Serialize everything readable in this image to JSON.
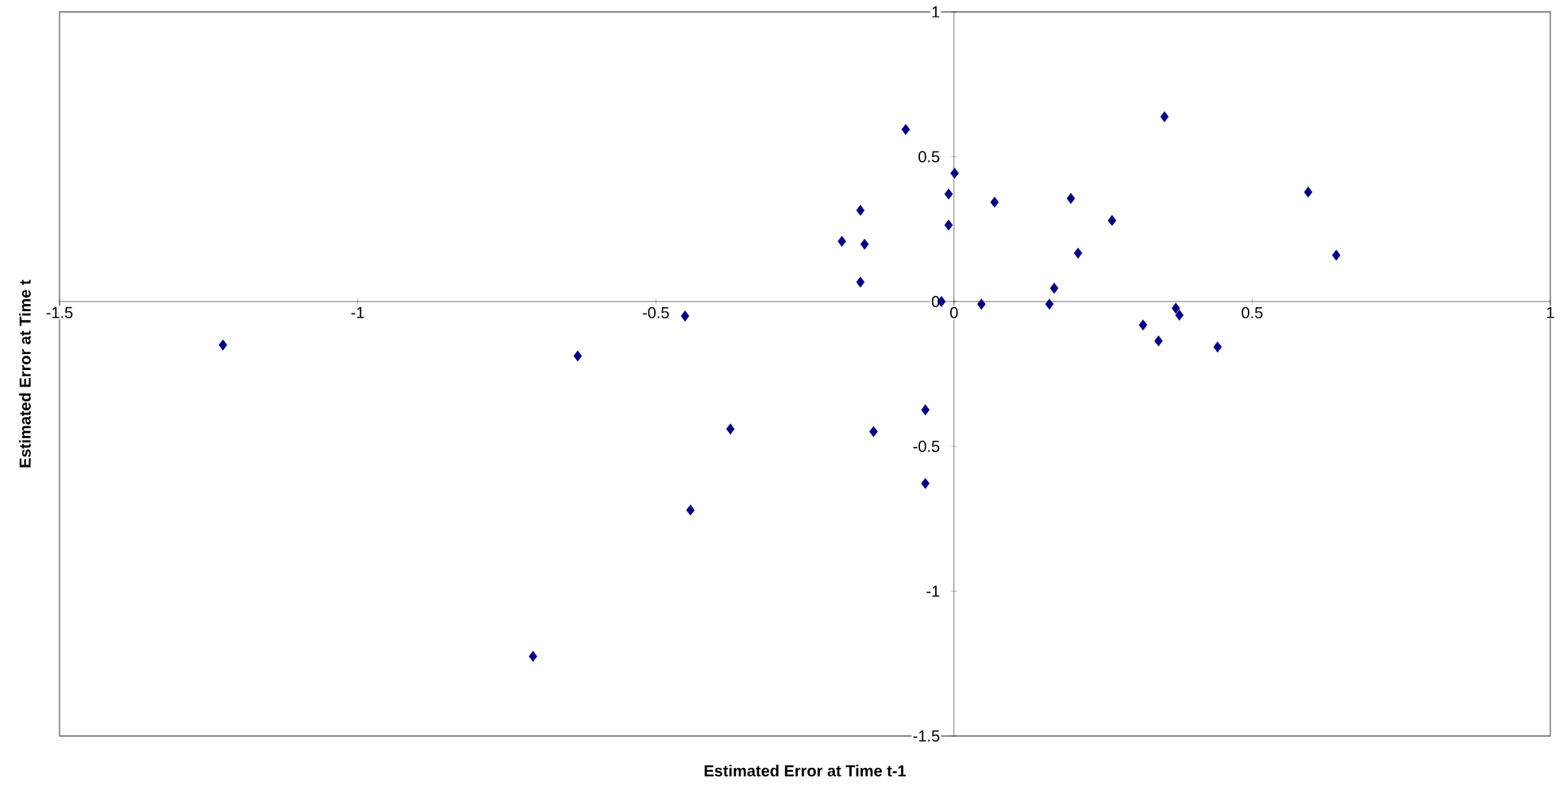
{
  "chart_data": {
    "type": "scatter",
    "xlabel": "Estimated Error at Time t-1",
    "ylabel": "Estimated Error at Time t",
    "xlim": [
      -1.5,
      1
    ],
    "ylim": [
      -1.5,
      1
    ],
    "xticks": [
      -1.5,
      -1,
      -0.5,
      0,
      0.5,
      1
    ],
    "yticks": [
      -1.5,
      -1,
      -0.5,
      0,
      0.5,
      1
    ],
    "marker": "diamond",
    "series": [
      {
        "color": "#000080",
        "x": [
          -1.226,
          -0.706,
          -0.631,
          -0.451,
          -0.442,
          -0.375,
          -0.188,
          -0.157,
          -0.157,
          -0.15,
          -0.135,
          -0.081,
          -0.048,
          -0.048,
          -0.021,
          -0.009,
          -0.009,
          0.001,
          0.046,
          0.068,
          0.16,
          0.168,
          0.196,
          0.208,
          0.265,
          0.317,
          0.343,
          0.353,
          0.372,
          0.378,
          0.442,
          0.594,
          0.641
        ],
        "values": [
          -0.15,
          -1.225,
          -0.188,
          -0.05,
          -0.72,
          -0.44,
          0.208,
          0.315,
          0.067,
          0.198,
          -0.449,
          0.594,
          -0.374,
          -0.628,
          0,
          0.371,
          0.264,
          0.443,
          -0.009,
          0.343,
          -0.009,
          0.046,
          0.356,
          0.167,
          0.28,
          -0.081,
          -0.136,
          0.638,
          -0.023,
          -0.047,
          -0.157,
          0.378,
          0.16
        ]
      }
    ]
  }
}
